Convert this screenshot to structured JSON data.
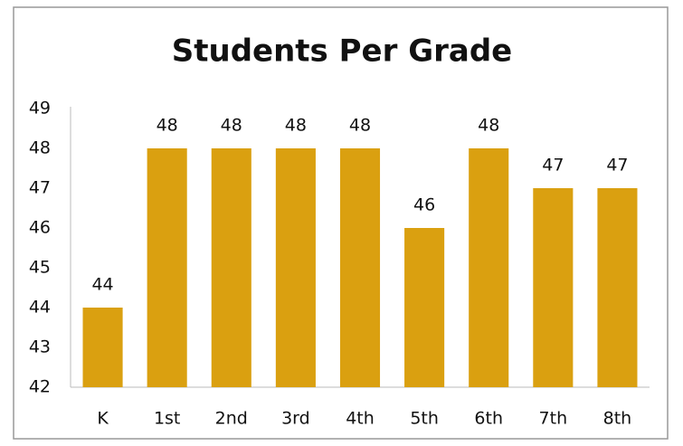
{
  "chart_data": {
    "type": "bar",
    "title": "Students Per Grade",
    "categories": [
      "K",
      "1st",
      "2nd",
      "3rd",
      "4th",
      "5th",
      "6th",
      "7th",
      "8th"
    ],
    "values": [
      44,
      48,
      48,
      48,
      48,
      46,
      48,
      47,
      47
    ],
    "color": "#daa010",
    "ylim": [
      42,
      49
    ],
    "yticks": [
      42,
      43,
      44,
      45,
      46,
      47,
      48,
      49
    ],
    "grid": false
  }
}
